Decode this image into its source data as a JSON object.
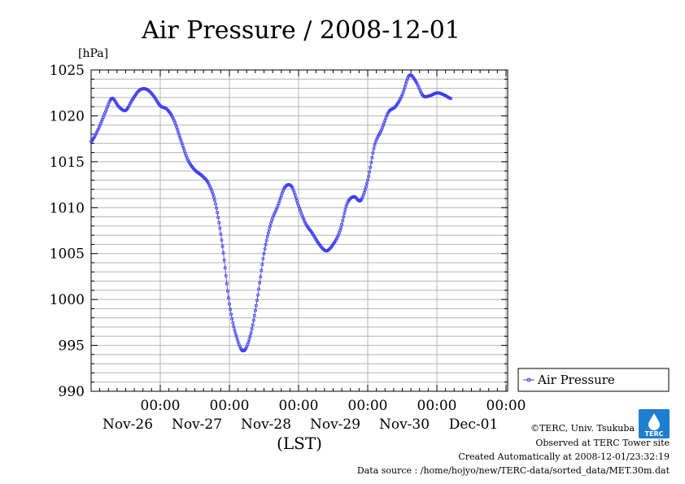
{
  "chart_data": {
    "type": "line",
    "title": "Air Pressure / 2008-12-01",
    "ylabel": "[hPa]",
    "xlabel": "(LST)",
    "ylim": [
      990,
      1025
    ],
    "y_ticks": [
      990,
      995,
      1000,
      1005,
      1010,
      1015,
      1020,
      1025
    ],
    "y_tick_labels": [
      "990",
      "995",
      "1000",
      "1005",
      "1010",
      "1015",
      "1020",
      "1025"
    ],
    "x_ticks": [
      {
        "time": "00:00",
        "date": "Nov-26"
      },
      {
        "time": "00:00",
        "date": "Nov-27"
      },
      {
        "time": "00:00",
        "date": "Nov-28"
      },
      {
        "time": "00:00",
        "date": "Nov-29"
      },
      {
        "time": "00:00",
        "date": "Nov-30"
      },
      {
        "time": "00:00",
        "date": "Dec-01"
      }
    ],
    "grid": true,
    "legend": "right",
    "series": [
      {
        "name": "Air Pressure",
        "color": "#3c3cf0",
        "marker": "circle",
        "x_unit": "days",
        "points": [
          [
            -1.0,
            1017.2
          ],
          [
            -0.9,
            1018.5
          ],
          [
            -0.8,
            1020.3
          ],
          [
            -0.7,
            1021.9
          ],
          [
            -0.6,
            1021.0
          ],
          [
            -0.5,
            1020.6
          ],
          [
            -0.4,
            1021.8
          ],
          [
            -0.3,
            1022.8
          ],
          [
            -0.2,
            1022.9
          ],
          [
            -0.1,
            1022.2
          ],
          [
            0.0,
            1021.1
          ],
          [
            0.1,
            1020.7
          ],
          [
            0.2,
            1019.5
          ],
          [
            0.3,
            1017.3
          ],
          [
            0.4,
            1015.2
          ],
          [
            0.5,
            1014.1
          ],
          [
            0.6,
            1013.5
          ],
          [
            0.7,
            1012.6
          ],
          [
            0.8,
            1010.4
          ],
          [
            0.9,
            1005.8
          ],
          [
            1.0,
            999.5
          ],
          [
            1.1,
            996.0
          ],
          [
            1.2,
            994.4
          ],
          [
            1.3,
            996.0
          ],
          [
            1.4,
            999.9
          ],
          [
            1.5,
            1005.0
          ],
          [
            1.6,
            1008.3
          ],
          [
            1.7,
            1010.2
          ],
          [
            1.8,
            1012.2
          ],
          [
            1.9,
            1012.3
          ],
          [
            2.0,
            1010.2
          ],
          [
            2.1,
            1008.3
          ],
          [
            2.2,
            1007.2
          ],
          [
            2.3,
            1006.0
          ],
          [
            2.4,
            1005.3
          ],
          [
            2.5,
            1006.0
          ],
          [
            2.6,
            1007.5
          ],
          [
            2.7,
            1010.4
          ],
          [
            2.8,
            1011.2
          ],
          [
            2.9,
            1010.8
          ],
          [
            3.0,
            1013.0
          ],
          [
            3.1,
            1016.8
          ],
          [
            3.2,
            1018.5
          ],
          [
            3.3,
            1020.4
          ],
          [
            3.4,
            1021.0
          ],
          [
            3.5,
            1022.3
          ],
          [
            3.6,
            1024.4
          ],
          [
            3.7,
            1023.7
          ],
          [
            3.8,
            1022.2
          ],
          [
            3.9,
            1022.2
          ],
          [
            4.0,
            1022.5
          ],
          [
            4.1,
            1022.3
          ],
          [
            4.2,
            1021.9
          ]
        ]
      }
    ]
  },
  "footer": {
    "logo_text": "TERC",
    "lines": [
      "©TERC, Univ. Tsukuba",
      "Observed at TERC Tower site",
      "Created Automatically at 2008-12-01/23:32:19",
      "Data source : /home/hojyo/new/TERC-data/sorted_data/MET.30m.dat"
    ]
  }
}
